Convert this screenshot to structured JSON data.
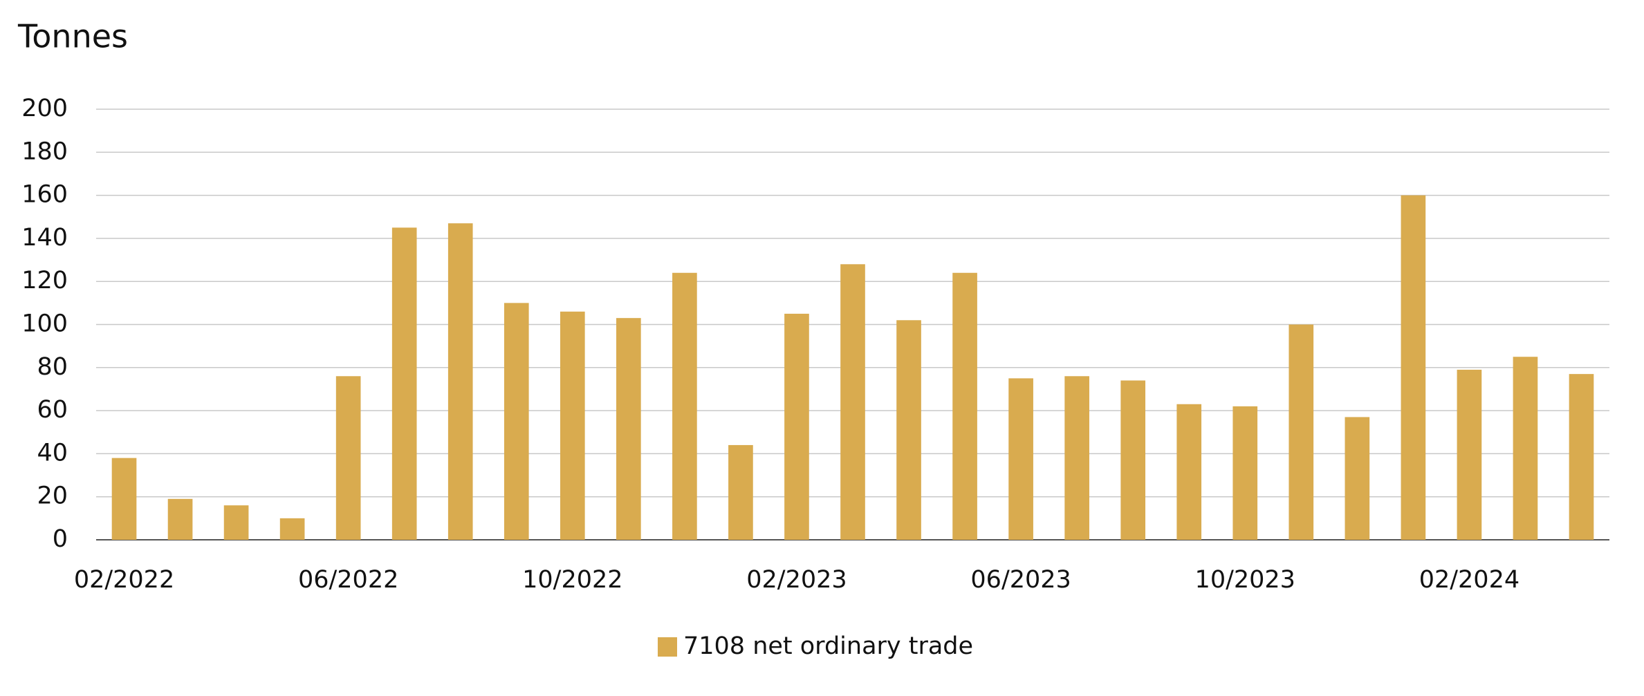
{
  "chart_data": {
    "type": "bar",
    "title": "Tonnes",
    "categories": [
      "02/2022",
      null,
      null,
      null,
      "06/2022",
      null,
      null,
      null,
      "10/2022",
      null,
      null,
      null,
      "02/2023",
      null,
      null,
      null,
      "06/2023",
      null,
      null,
      null,
      "10/2023",
      null,
      null,
      null,
      "02/2024",
      null,
      null
    ],
    "series": [
      {
        "name": "7108 net ordinary trade",
        "color": "#d9ab4f",
        "values": [
          38,
          19,
          16,
          10,
          76,
          145,
          147,
          110,
          106,
          103,
          124,
          44,
          105,
          128,
          102,
          124,
          75,
          76,
          74,
          63,
          62,
          100,
          57,
          160,
          79,
          85,
          77
        ]
      }
    ],
    "ylim": [
      0,
      200
    ],
    "yticks": [
      0,
      20,
      40,
      60,
      80,
      100,
      120,
      140,
      160,
      180,
      200
    ],
    "grid": true
  }
}
